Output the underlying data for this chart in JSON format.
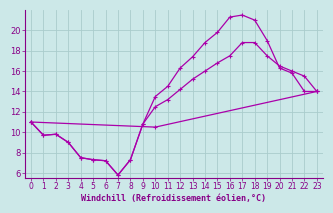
{
  "background_color": "#cce8e8",
  "line_color": "#aa00aa",
  "grid_color": "#aacccc",
  "xlabel": "Windchill (Refroidissement éolien,°C)",
  "xlabel_color": "#880088",
  "tick_color": "#880088",
  "xlim": [
    -0.5,
    23.5
  ],
  "ylim": [
    5.5,
    22.0
  ],
  "yticks": [
    6,
    8,
    10,
    12,
    14,
    16,
    18,
    20
  ],
  "xticks": [
    0,
    1,
    2,
    3,
    4,
    5,
    6,
    7,
    8,
    9,
    10,
    11,
    12,
    13,
    14,
    15,
    16,
    17,
    18,
    19,
    20,
    21,
    22,
    23
  ],
  "line1_x": [
    0,
    1,
    2,
    3,
    4,
    5,
    6,
    7,
    8,
    9,
    10,
    11,
    12,
    13,
    14,
    15,
    16,
    17,
    18,
    19,
    20,
    21,
    22,
    23
  ],
  "line1_y": [
    11.0,
    9.7,
    9.8,
    9.0,
    7.5,
    7.3,
    7.2,
    5.8,
    7.3,
    10.8,
    13.5,
    14.5,
    16.3,
    17.4,
    18.8,
    19.8,
    21.3,
    21.5,
    21.0,
    19.0,
    16.3,
    15.8,
    14.0,
    14.0
  ],
  "line2_x": [
    0,
    1,
    2,
    3,
    4,
    5,
    6,
    7,
    8,
    9,
    10,
    11,
    12,
    13,
    14,
    15,
    16,
    17,
    18,
    19,
    20,
    21,
    22,
    23
  ],
  "line2_y": [
    11.0,
    9.7,
    9.8,
    9.0,
    7.5,
    7.3,
    7.2,
    5.8,
    7.3,
    10.8,
    12.5,
    13.2,
    14.2,
    15.2,
    16.0,
    16.8,
    17.5,
    18.8,
    18.8,
    17.5,
    16.5,
    16.0,
    15.5,
    14.0
  ],
  "line3_x": [
    0,
    10,
    23
  ],
  "line3_y": [
    11.0,
    10.5,
    14.0
  ]
}
